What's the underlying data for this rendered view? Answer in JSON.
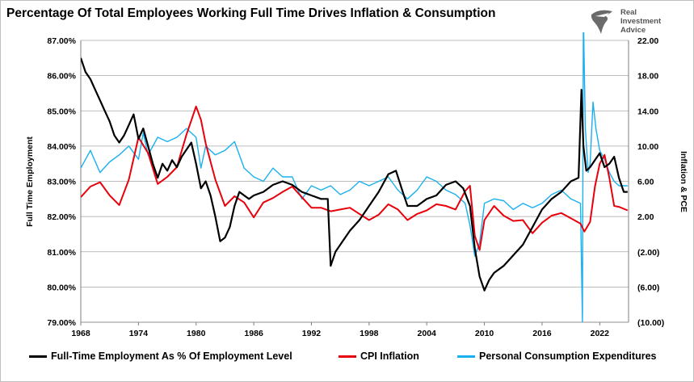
{
  "title": "Percentage Of Total Employees Working Full Time Drives Inflation & Consumption",
  "logo": {
    "line1": "Real",
    "line2": "Investment",
    "line3": "Advice",
    "icon": "eagle-head-icon"
  },
  "colors": {
    "fulltime": "#000000",
    "cpi": "#e8000b",
    "pce": "#1ab0f0",
    "grid": "#a6a6a6"
  },
  "chart_data": {
    "type": "line",
    "xlim": [
      1968,
      2025
    ],
    "x_ticks": [
      "1968",
      "1974",
      "1980",
      "1986",
      "1992",
      "1998",
      "2004",
      "2010",
      "2016",
      "2022"
    ],
    "x_tick_values": [
      1968,
      1974,
      1980,
      1986,
      1992,
      1998,
      2004,
      2010,
      2016,
      2022
    ],
    "left_axis": {
      "label": "Full Time Employment",
      "ylim": [
        79,
        87
      ],
      "ticks": [
        "87.00%",
        "86.00%",
        "85.00%",
        "84.00%",
        "83.00%",
        "82.00%",
        "81.00%",
        "80.00%",
        "79.00%"
      ],
      "tick_values": [
        87,
        86,
        85,
        84,
        83,
        82,
        81,
        80,
        79
      ]
    },
    "right_axis": {
      "label": "Inflation & PCE",
      "ylim": [
        -10,
        22
      ],
      "ticks": [
        "22.00",
        "18.00",
        "14.00",
        "10.00",
        "6.00",
        "2.00",
        "(2.00)",
        "(6.00)",
        "(10.00)"
      ],
      "tick_values": [
        22,
        18,
        14,
        10,
        6,
        2,
        -2,
        -6,
        -10
      ]
    },
    "grid": true,
    "legend_position": "bottom",
    "series": [
      {
        "name": "Full-Time Employment As % Of Employment Level",
        "axis": "left",
        "color": "#000000",
        "x": [
          1968.0,
          1968.5,
          1969.0,
          1969.5,
          1970.0,
          1970.5,
          1971.0,
          1971.5,
          1972.0,
          1972.5,
          1973.0,
          1973.5,
          1974.0,
          1974.5,
          1975.0,
          1975.5,
          1976.0,
          1976.5,
          1977.0,
          1977.5,
          1978.0,
          1978.5,
          1979.0,
          1979.5,
          1980.0,
          1980.5,
          1981.0,
          1981.5,
          1982.0,
          1982.5,
          1983.0,
          1983.5,
          1984.0,
          1984.5,
          1985.0,
          1985.5,
          1986.0,
          1987.0,
          1988.0,
          1989.0,
          1990.0,
          1991.0,
          1992.0,
          1993.0,
          1993.7,
          1994.0,
          1994.5,
          1995.0,
          1996.0,
          1997.0,
          1998.0,
          1999.0,
          2000.0,
          2000.8,
          2001.5,
          2002.0,
          2003.0,
          2004.0,
          2005.0,
          2006.0,
          2007.0,
          2007.8,
          2008.5,
          2009.0,
          2009.5,
          2010.0,
          2010.5,
          2011.0,
          2012.0,
          2013.0,
          2014.0,
          2015.0,
          2016.0,
          2017.0,
          2018.0,
          2019.0,
          2019.8,
          2020.1,
          2020.3,
          2020.6,
          2021.0,
          2021.5,
          2022.0,
          2022.5,
          2023.0,
          2023.5,
          2024.0,
          2024.5,
          2024.9
        ],
        "values": [
          86.5,
          86.1,
          85.9,
          85.6,
          85.3,
          85.0,
          84.7,
          84.3,
          84.1,
          84.3,
          84.6,
          84.9,
          84.2,
          84.5,
          84.0,
          83.5,
          83.1,
          83.5,
          83.3,
          83.6,
          83.4,
          83.7,
          83.9,
          84.1,
          83.5,
          82.8,
          83.0,
          82.6,
          82.0,
          81.3,
          81.4,
          81.7,
          82.3,
          82.7,
          82.6,
          82.5,
          82.6,
          82.7,
          82.9,
          83.0,
          82.9,
          82.7,
          82.6,
          82.5,
          82.5,
          80.6,
          81.0,
          81.2,
          81.6,
          81.9,
          82.3,
          82.7,
          83.2,
          83.3,
          82.7,
          82.3,
          82.3,
          82.5,
          82.6,
          82.9,
          83.0,
          82.8,
          82.3,
          81.1,
          80.3,
          79.9,
          80.2,
          80.4,
          80.6,
          80.9,
          81.2,
          81.7,
          82.2,
          82.5,
          82.7,
          83.0,
          83.1,
          85.6,
          84.0,
          83.3,
          83.4,
          83.6,
          83.8,
          83.4,
          83.5,
          83.7,
          83.1,
          82.7,
          82.7
        ]
      },
      {
        "name": "CPI Inflation",
        "axis": "right",
        "color": "#e8000b",
        "x": [
          1968.0,
          1969.0,
          1970.0,
          1971.0,
          1972.0,
          1973.0,
          1974.0,
          1975.0,
          1976.0,
          1977.0,
          1978.0,
          1979.0,
          1980.0,
          1980.5,
          1981.0,
          1982.0,
          1983.0,
          1984.0,
          1985.0,
          1986.0,
          1987.0,
          1988.0,
          1989.0,
          1990.0,
          1991.0,
          1992.0,
          1993.0,
          1994.0,
          1995.0,
          1996.0,
          1997.0,
          1998.0,
          1999.0,
          2000.0,
          2001.0,
          2002.0,
          2003.0,
          2004.0,
          2005.0,
          2006.0,
          2007.0,
          2008.0,
          2008.5,
          2009.0,
          2009.5,
          2010.0,
          2011.0,
          2012.0,
          2013.0,
          2014.0,
          2015.0,
          2016.0,
          2017.0,
          2018.0,
          2019.0,
          2020.0,
          2020.4,
          2021.0,
          2021.5,
          2022.0,
          2022.5,
          2023.0,
          2023.5,
          2024.0,
          2024.9
        ],
        "values": [
          4.2,
          5.4,
          5.9,
          4.4,
          3.3,
          6.2,
          11.0,
          9.2,
          5.7,
          6.5,
          7.6,
          11.3,
          14.5,
          13.0,
          10.3,
          6.2,
          3.2,
          4.3,
          3.6,
          1.9,
          3.6,
          4.1,
          4.8,
          5.4,
          4.2,
          3.0,
          3.0,
          2.6,
          2.8,
          3.0,
          2.3,
          1.6,
          2.2,
          3.4,
          2.8,
          1.6,
          2.3,
          2.7,
          3.4,
          3.2,
          2.8,
          4.9,
          5.5,
          -0.2,
          -1.8,
          1.6,
          3.2,
          2.1,
          1.5,
          1.6,
          0.1,
          1.3,
          2.1,
          2.4,
          1.8,
          1.2,
          0.3,
          1.4,
          5.4,
          8.0,
          9.0,
          6.4,
          3.2,
          3.1,
          2.7
        ]
      },
      {
        "name": "Personal Consumption Expenditures",
        "axis": "right",
        "color": "#1ab0f0",
        "x": [
          1968.0,
          1969.0,
          1970.0,
          1971.0,
          1972.0,
          1973.0,
          1974.0,
          1974.5,
          1975.0,
          1976.0,
          1977.0,
          1978.0,
          1979.0,
          1980.0,
          1980.5,
          1981.0,
          1982.0,
          1983.0,
          1984.0,
          1985.0,
          1986.0,
          1987.0,
          1988.0,
          1989.0,
          1990.0,
          1991.0,
          1992.0,
          1993.0,
          1994.0,
          1995.0,
          1996.0,
          1997.0,
          1998.0,
          1999.0,
          2000.0,
          2001.0,
          2002.0,
          2003.0,
          2004.0,
          2005.0,
          2006.0,
          2007.0,
          2008.0,
          2008.5,
          2009.0,
          2009.5,
          2010.0,
          2011.0,
          2012.0,
          2013.0,
          2014.0,
          2015.0,
          2016.0,
          2017.0,
          2018.0,
          2019.0,
          2020.0,
          2020.2,
          2020.3,
          2020.5,
          2020.8,
          2021.0,
          2021.3,
          2021.6,
          2022.0,
          2022.5,
          2023.0,
          2023.5,
          2024.0,
          2024.9
        ],
        "values": [
          7.5,
          9.5,
          7.0,
          8.2,
          9.0,
          10.0,
          8.5,
          11.5,
          9.0,
          11.0,
          10.5,
          11.0,
          12.0,
          11.0,
          7.5,
          10.0,
          9.0,
          9.5,
          10.5,
          7.5,
          6.5,
          6.0,
          7.5,
          6.5,
          6.5,
          4.0,
          5.5,
          5.0,
          5.5,
          4.5,
          5.0,
          6.0,
          5.5,
          6.0,
          6.5,
          5.0,
          4.0,
          5.0,
          6.5,
          6.0,
          5.0,
          4.5,
          3.5,
          1.0,
          -2.5,
          -1.0,
          3.5,
          4.0,
          3.8,
          2.8,
          3.5,
          3.0,
          3.5,
          4.5,
          5.0,
          4.0,
          3.5,
          -10.0,
          25.0,
          12.0,
          7.0,
          8.0,
          15.0,
          12.0,
          9.5,
          8.5,
          7.0,
          6.0,
          5.5,
          5.5
        ]
      }
    ]
  }
}
